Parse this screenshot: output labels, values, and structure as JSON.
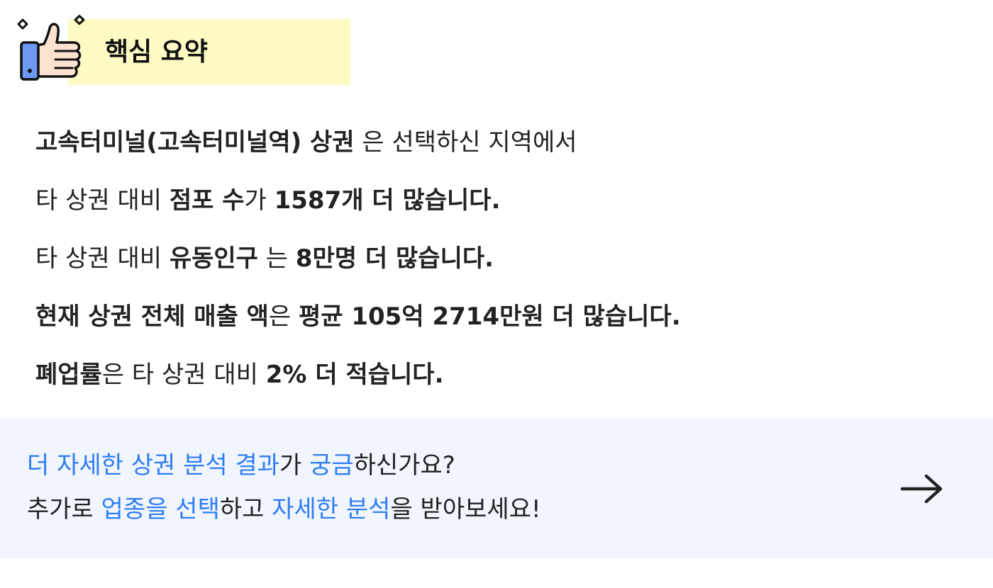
{
  "header": {
    "title": "핵심 요약",
    "icon": "thumbs-up-icon",
    "highlight_color": "#fefac4"
  },
  "summary": {
    "line1": {
      "area_name": "고속터미널(고속터미널역) 상권",
      "rest": " 은 선택하신 지역에서"
    },
    "line2": {
      "prefix": "타 상권 대비 ",
      "metric": "점포 수",
      "particle": "가 ",
      "value": "1587개 더 많습니다."
    },
    "line3": {
      "prefix": "타 상권 대비 ",
      "metric": "유동인구",
      "particle": " 는 ",
      "value": "8만명 더 많습니다."
    },
    "line4": {
      "metric": "현재 상권 전체 매출 액",
      "particle": "은 ",
      "value": "평균 105억 2714만원 더 많습니다."
    },
    "line5": {
      "metric": "폐업률",
      "particle": "은 타 상권 대비 ",
      "value": "2% 더 적습니다."
    }
  },
  "cta": {
    "line1": [
      {
        "text": "더 자세한 상권 분석 결과",
        "blue": true
      },
      {
        "text": "가 ",
        "blue": false
      },
      {
        "text": "궁금",
        "blue": true
      },
      {
        "text": "하신가요?",
        "blue": false
      }
    ],
    "line2": [
      {
        "text": "추가로 ",
        "blue": false
      },
      {
        "text": "업종을 선택",
        "blue": true
      },
      {
        "text": "하고 ",
        "blue": false
      },
      {
        "text": "자세한 분석",
        "blue": true
      },
      {
        "text": "을 받아보세요!",
        "blue": false
      }
    ],
    "arrow_icon": "arrow-right-icon",
    "background": "#f1f6fe",
    "accent_color": "#2f7df6"
  }
}
